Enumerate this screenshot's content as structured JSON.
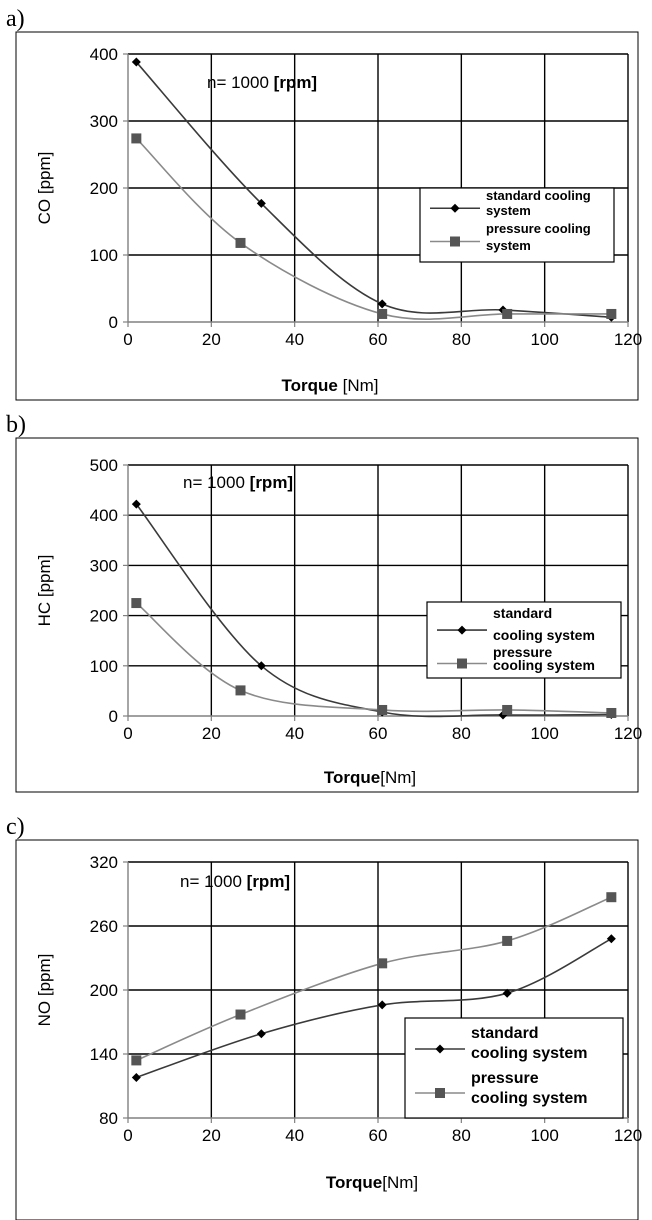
{
  "chart_data": [
    {
      "panel": "a)",
      "type": "line",
      "xlabel_bold": "Torque",
      "xlabel_rest": " [Nm]",
      "ylabel": "CO [ppm]",
      "xlim": [
        0,
        120
      ],
      "ylim": [
        0,
        400
      ],
      "xticks": [
        0,
        20,
        40,
        60,
        80,
        100,
        120
      ],
      "yticks": [
        0,
        100,
        200,
        300,
        400
      ],
      "grid": true,
      "annotation_text": "n= 1000 ",
      "annotation_unit": "[rpm]",
      "legend_position": "right-middle",
      "series": [
        {
          "name": "standard cooling system",
          "legend_lines": [
            "standard cooling",
            "system"
          ],
          "marker": "diamond",
          "color": "#3a3a3a",
          "x": [
            2,
            32,
            61,
            90,
            116
          ],
          "y": [
            388,
            177,
            27,
            18,
            7
          ]
        },
        {
          "name": "pressure cooling system",
          "legend_lines": [
            "pressure cooling",
            "system"
          ],
          "marker": "square",
          "color": "#8a8a8a",
          "x": [
            2,
            27,
            61,
            91,
            116
          ],
          "y": [
            274,
            118,
            12,
            12,
            12
          ]
        }
      ]
    },
    {
      "panel": "b)",
      "type": "line",
      "xlabel_bold": "Torque",
      "xlabel_rest": "[Nm]",
      "ylabel": "HC [ppm]",
      "xlim": [
        0,
        120
      ],
      "ylim": [
        0,
        500
      ],
      "xticks": [
        0,
        20,
        40,
        60,
        80,
        100,
        120
      ],
      "yticks": [
        0,
        100,
        200,
        300,
        400,
        500
      ],
      "grid": true,
      "annotation_text": "n= 1000 ",
      "annotation_unit": "[rpm]",
      "legend_position": "right-middle",
      "series": [
        {
          "name": "standard cooling system",
          "legend_lines": [
            "standard",
            "cooling system"
          ],
          "marker": "diamond",
          "color": "#3a3a3a",
          "x": [
            2,
            32,
            61,
            90,
            116
          ],
          "y": [
            422,
            100,
            8,
            2,
            3
          ]
        },
        {
          "name": "pressure cooling system",
          "legend_lines": [
            "pressure",
            "cooling system"
          ],
          "marker": "square",
          "color": "#8a8a8a",
          "x": [
            2,
            27,
            61,
            91,
            116
          ],
          "y": [
            225,
            51,
            12,
            12,
            6
          ]
        }
      ]
    },
    {
      "panel": "c)",
      "type": "line",
      "xlabel_bold": "Torque",
      "xlabel_rest": "[Nm]",
      "ylabel": "NO  [ppm]",
      "xlim": [
        0,
        120
      ],
      "ylim": [
        80,
        320
      ],
      "xticks": [
        0,
        20,
        40,
        60,
        80,
        100,
        120
      ],
      "yticks": [
        80,
        140,
        200,
        260,
        320
      ],
      "grid": true,
      "annotation_text": "n= 1000 ",
      "annotation_unit": "[rpm]",
      "legend_position": "right-bottom",
      "series": [
        {
          "name": "standard cooling system",
          "legend_lines": [
            "standard",
            "cooling system"
          ],
          "marker": "diamond",
          "color": "#3a3a3a",
          "x": [
            2,
            32,
            61,
            91,
            116
          ],
          "y": [
            118,
            159,
            186,
            197,
            248
          ]
        },
        {
          "name": "pressure cooling system",
          "legend_lines": [
            "pressure",
            "cooling system"
          ],
          "marker": "square",
          "color": "#8a8a8a",
          "x": [
            2,
            27,
            61,
            91,
            116
          ],
          "y": [
            134,
            177,
            225,
            246,
            287
          ]
        }
      ]
    }
  ]
}
